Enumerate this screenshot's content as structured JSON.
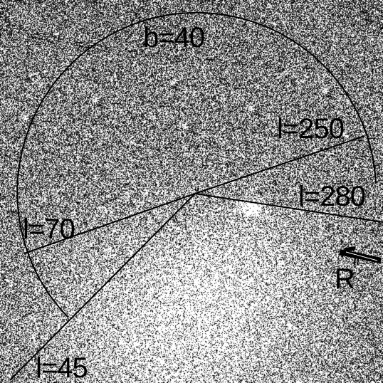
{
  "image": {
    "type": "grayscale sky map (noisy, diffuse bright emission in lower half)",
    "colors": {
      "background": "#808080",
      "ink": "#000000",
      "highlight": "#ffffff"
    }
  },
  "labels": {
    "b40": "b=40",
    "l250": "l=250",
    "l280": "l=280",
    "l70": "l=70",
    "l45": "l=45",
    "r": "R"
  }
}
